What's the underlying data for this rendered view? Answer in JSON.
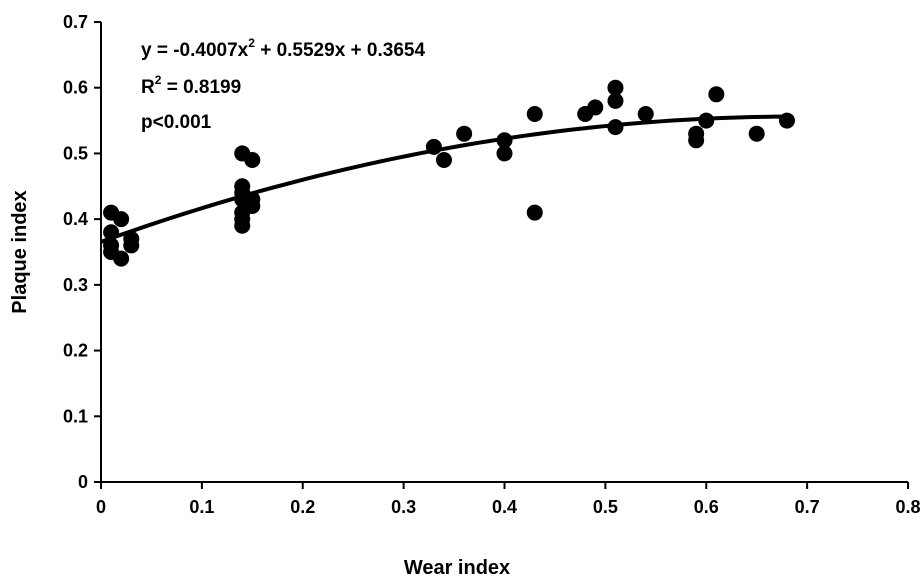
{
  "chart_data": {
    "type": "scatter",
    "xlabel": "Wear index",
    "ylabel": "Plaque index",
    "xlim": [
      0,
      0.8
    ],
    "ylim": [
      0,
      0.7
    ],
    "x_ticks": [
      "0",
      "0.1",
      "0.2",
      "0.3",
      "0.4",
      "0.5",
      "0.6",
      "0.7",
      "0.8"
    ],
    "y_ticks": [
      "0",
      "0.1",
      "0.2",
      "0.3",
      "0.4",
      "0.5",
      "0.6",
      "0.7"
    ],
    "grid": false,
    "colors": {
      "points": "#000000",
      "trendline": "#000000"
    },
    "points": [
      {
        "x": 0.01,
        "y": 0.41
      },
      {
        "x": 0.01,
        "y": 0.38
      },
      {
        "x": 0.01,
        "y": 0.36
      },
      {
        "x": 0.01,
        "y": 0.35
      },
      {
        "x": 0.02,
        "y": 0.4
      },
      {
        "x": 0.02,
        "y": 0.34
      },
      {
        "x": 0.03,
        "y": 0.37
      },
      {
        "x": 0.03,
        "y": 0.36
      },
      {
        "x": 0.14,
        "y": 0.5
      },
      {
        "x": 0.14,
        "y": 0.45
      },
      {
        "x": 0.14,
        "y": 0.44
      },
      {
        "x": 0.14,
        "y": 0.43
      },
      {
        "x": 0.14,
        "y": 0.41
      },
      {
        "x": 0.14,
        "y": 0.4
      },
      {
        "x": 0.14,
        "y": 0.39
      },
      {
        "x": 0.15,
        "y": 0.49
      },
      {
        "x": 0.15,
        "y": 0.43
      },
      {
        "x": 0.15,
        "y": 0.42
      },
      {
        "x": 0.33,
        "y": 0.51
      },
      {
        "x": 0.34,
        "y": 0.49
      },
      {
        "x": 0.36,
        "y": 0.53
      },
      {
        "x": 0.4,
        "y": 0.52
      },
      {
        "x": 0.4,
        "y": 0.5
      },
      {
        "x": 0.43,
        "y": 0.56
      },
      {
        "x": 0.43,
        "y": 0.41
      },
      {
        "x": 0.48,
        "y": 0.56
      },
      {
        "x": 0.49,
        "y": 0.57
      },
      {
        "x": 0.51,
        "y": 0.6
      },
      {
        "x": 0.51,
        "y": 0.58
      },
      {
        "x": 0.51,
        "y": 0.54
      },
      {
        "x": 0.54,
        "y": 0.56
      },
      {
        "x": 0.59,
        "y": 0.53
      },
      {
        "x": 0.59,
        "y": 0.52
      },
      {
        "x": 0.6,
        "y": 0.55
      },
      {
        "x": 0.61,
        "y": 0.59
      },
      {
        "x": 0.65,
        "y": 0.53
      },
      {
        "x": 0.68,
        "y": 0.55
      }
    ],
    "trendline": {
      "type": "polynomial",
      "coefficients": [
        -0.4007,
        0.5529,
        0.3654
      ],
      "x_range": [
        0,
        0.68
      ]
    },
    "annotations": {
      "equation": {
        "prefix": "y = -0.4007x",
        "sup": "2",
        "suffix": " + 0.5529x + 0.3654"
      },
      "r_squared": {
        "prefix": "R",
        "sup": "2",
        "suffix": " = 0.8199"
      },
      "p_value": "p<0.001"
    }
  }
}
